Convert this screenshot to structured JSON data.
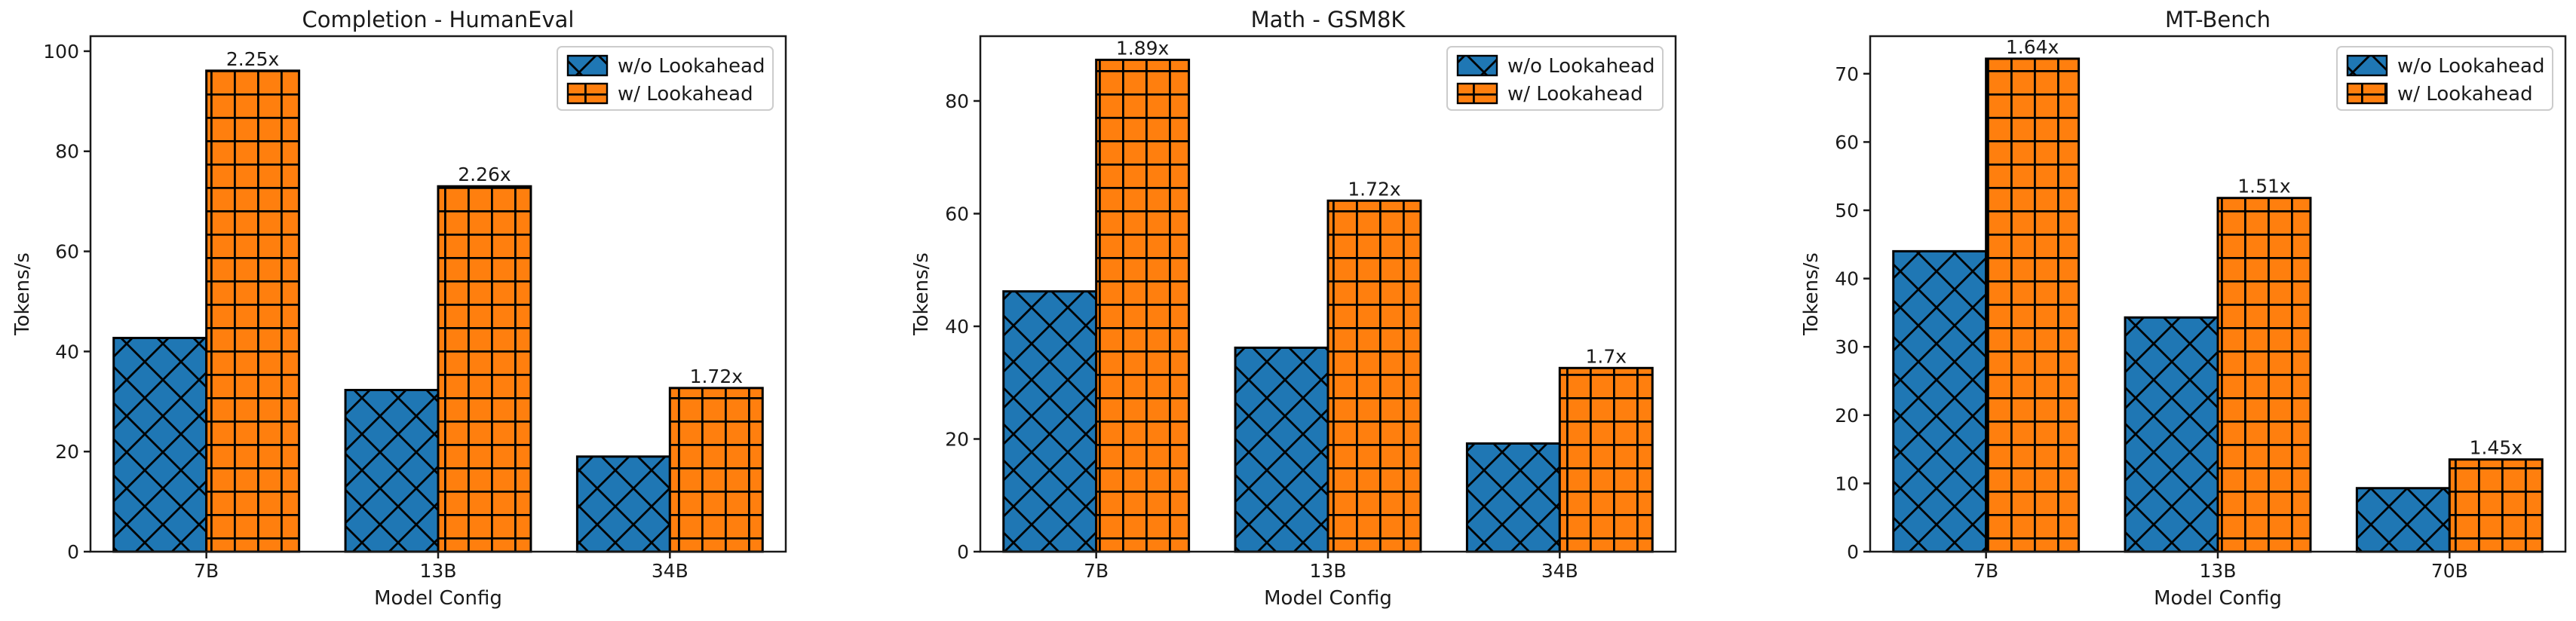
{
  "figure": {
    "background": "#ffffff",
    "text_color": "#1a1a1a",
    "bar_edge_color": "#000000",
    "legend": {
      "position": "upper right",
      "border_color": "#cccccc",
      "items": [
        {
          "label": "w/o Lookahead",
          "color": "#1f77b4",
          "hatch": "xx"
        },
        {
          "label": "w/ Lookahead",
          "color": "#ff7f0e",
          "hatch": "++"
        }
      ]
    }
  },
  "chart_data": [
    {
      "type": "bar",
      "title": "Completion - HumanEval",
      "xlabel": "Model Config",
      "ylabel": "Tokens/s",
      "categories": [
        "7B",
        "13B",
        "34B"
      ],
      "series": [
        {
          "name": "w/o Lookahead",
          "color": "#1f77b4",
          "hatch": "xx",
          "values": [
            42.7,
            32.3,
            19.0
          ]
        },
        {
          "name": "w/ Lookahead",
          "color": "#ff7f0e",
          "hatch": "++",
          "values": [
            96.1,
            73.0,
            32.7
          ]
        }
      ],
      "annotations": [
        "2.25x",
        "2.26x",
        "1.72x"
      ],
      "ylim": [
        0,
        103
      ],
      "yticks": [
        0,
        20,
        40,
        60,
        80,
        100
      ],
      "grid": false,
      "legend_position": "upper right"
    },
    {
      "type": "bar",
      "title": "Math - GSM8K",
      "xlabel": "Model Config",
      "ylabel": "Tokens/s",
      "categories": [
        "7B",
        "13B",
        "34B"
      ],
      "series": [
        {
          "name": "w/o Lookahead",
          "color": "#1f77b4",
          "hatch": "xx",
          "values": [
            46.2,
            36.2,
            19.2
          ]
        },
        {
          "name": "w/ Lookahead",
          "color": "#ff7f0e",
          "hatch": "++",
          "values": [
            87.3,
            62.3,
            32.6
          ]
        }
      ],
      "annotations": [
        "1.89x",
        "1.72x",
        "1.7x"
      ],
      "ylim": [
        0,
        91.5
      ],
      "yticks": [
        0,
        20,
        40,
        60,
        80
      ],
      "grid": false,
      "legend_position": "upper right"
    },
    {
      "type": "bar",
      "title": "MT-Bench",
      "xlabel": "Model Config",
      "ylabel": "Tokens/s",
      "categories": [
        "7B",
        "13B",
        "70B"
      ],
      "series": [
        {
          "name": "w/o Lookahead",
          "color": "#1f77b4",
          "hatch": "xx",
          "values": [
            44.0,
            34.3,
            9.3
          ]
        },
        {
          "name": "w/ Lookahead",
          "color": "#ff7f0e",
          "hatch": "++",
          "values": [
            72.2,
            51.8,
            13.5
          ]
        }
      ],
      "annotations": [
        "1.64x",
        "1.51x",
        "1.45x"
      ],
      "ylim": [
        0,
        75.5
      ],
      "yticks": [
        0,
        10,
        20,
        30,
        40,
        50,
        60,
        70
      ],
      "grid": false,
      "legend_position": "upper right"
    }
  ]
}
